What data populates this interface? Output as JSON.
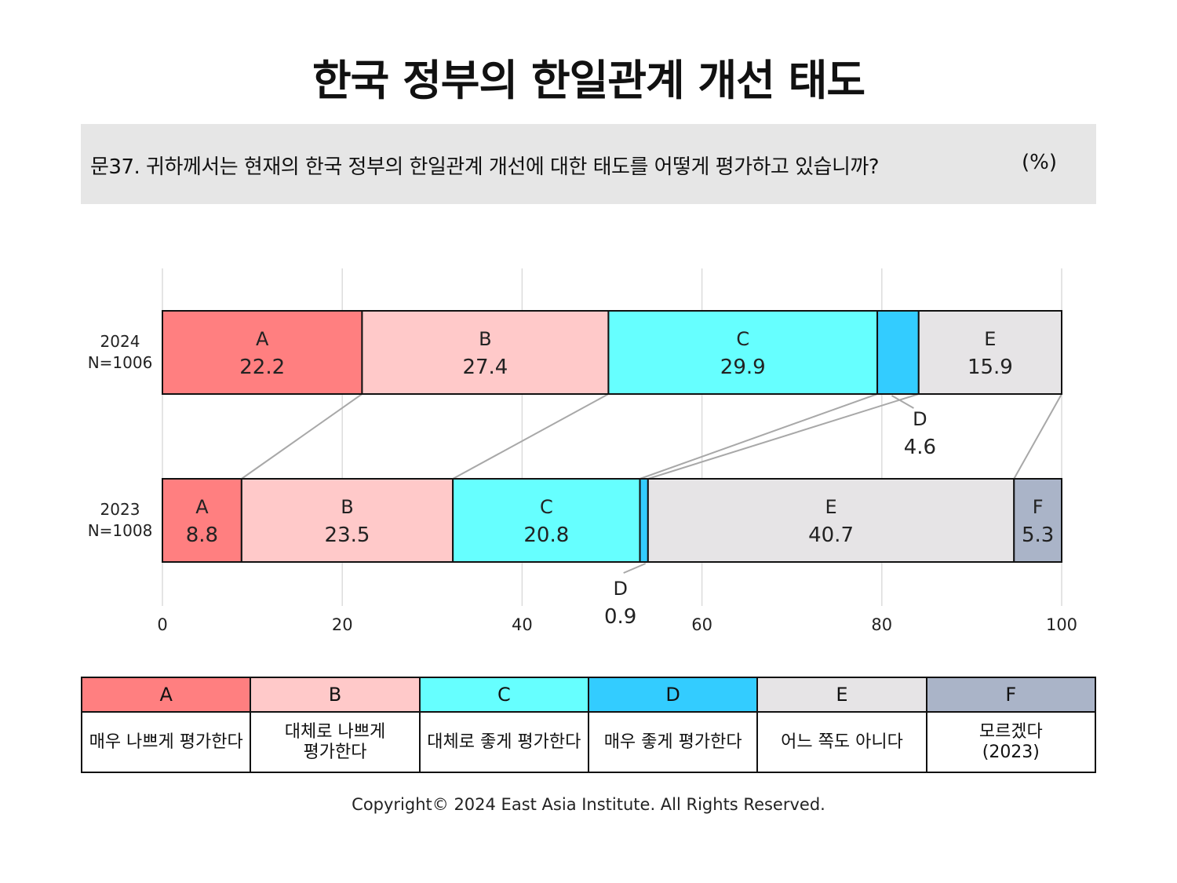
{
  "title": "한국 정부의 한일관계 개선 태도",
  "question": {
    "text": "문37. 귀하께서는 현재의 한국 정부의 한일관계 개선에 대한 태도를 어떻게 평가하고 있습니까?",
    "unit": "(%)"
  },
  "colors": {
    "A": "#ff7f80",
    "B": "#ffc9c9",
    "C": "#66ffff",
    "D": "#33ccff",
    "E": "#e6e4e6",
    "F": "#aab4c8"
  },
  "chart_data": {
    "type": "bar",
    "orientation": "horizontal-stacked",
    "xlim": [
      0,
      100
    ],
    "xticks": [
      "0",
      "20",
      "40",
      "60",
      "80",
      "100"
    ],
    "grid": true,
    "rows": [
      {
        "year": "2024",
        "n": "N=1006",
        "segments": [
          {
            "key": "A",
            "value": 22.2,
            "label": "22.2"
          },
          {
            "key": "B",
            "value": 27.4,
            "label": "27.4"
          },
          {
            "key": "C",
            "value": 29.9,
            "label": "29.9"
          },
          {
            "key": "D",
            "value": 4.6,
            "label": "4.6"
          },
          {
            "key": "E",
            "value": 15.9,
            "label": "15.9"
          }
        ]
      },
      {
        "year": "2023",
        "n": "N=1008",
        "segments": [
          {
            "key": "A",
            "value": 8.8,
            "label": "8.8"
          },
          {
            "key": "B",
            "value": 23.5,
            "label": "23.5"
          },
          {
            "key": "C",
            "value": 20.8,
            "label": "20.8"
          },
          {
            "key": "D",
            "value": 0.9,
            "label": "0.9"
          },
          {
            "key": "E",
            "value": 40.7,
            "label": "40.7"
          },
          {
            "key": "F",
            "value": 5.3,
            "label": "5.3"
          }
        ]
      }
    ]
  },
  "legend": [
    {
      "key": "A",
      "label": "매우 나쁘게 평가한다"
    },
    {
      "key": "B",
      "label": "대체로 나쁘게\n평가한다"
    },
    {
      "key": "C",
      "label": "대체로 좋게 평가한다"
    },
    {
      "key": "D",
      "label": "매우 좋게 평가한다"
    },
    {
      "key": "E",
      "label": "어느 쪽도 아니다"
    },
    {
      "key": "F",
      "label": "모르겠다\n(2023)"
    }
  ],
  "copyright": "Copyright© 2024 East Asia Institute. All Rights Reserved."
}
